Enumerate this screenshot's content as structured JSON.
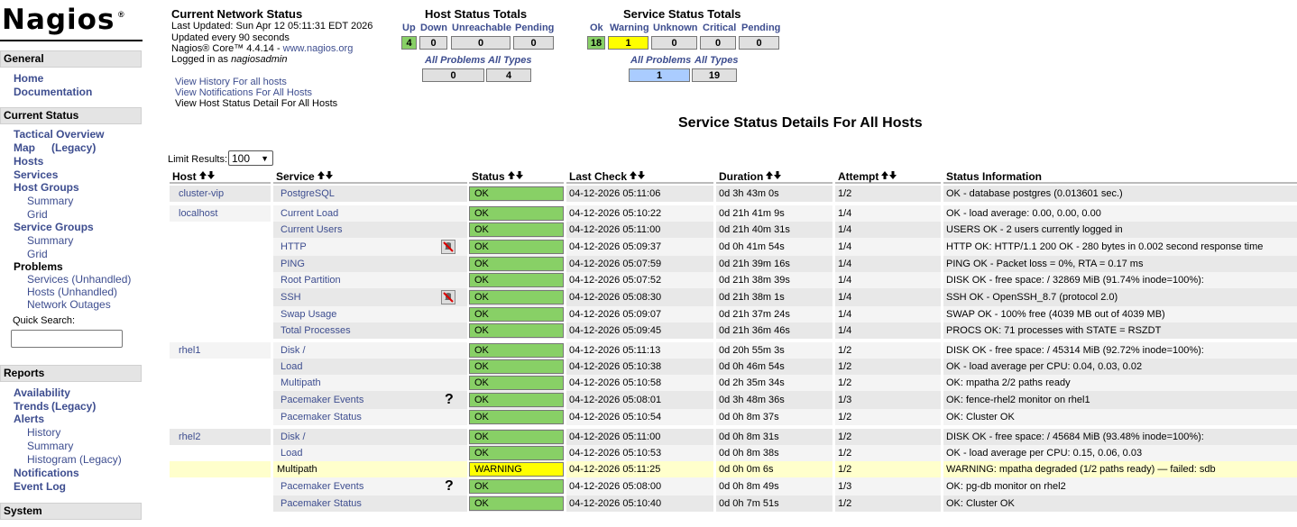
{
  "logo": {
    "name": "Nagios",
    "mark": "®"
  },
  "sidebar": [
    {
      "title": "General",
      "items": [
        {
          "label": "Home",
          "level": 0
        },
        {
          "label": "Documentation",
          "level": 0
        }
      ]
    },
    {
      "title": "Current Status",
      "items": [
        {
          "label": "Tactical Overview",
          "level": 0
        },
        {
          "label": "Map",
          "suffix": "(Legacy)",
          "level": 0
        },
        {
          "label": "Hosts",
          "level": 0
        },
        {
          "label": "Services",
          "level": 0
        },
        {
          "label": "Host Groups",
          "level": 0
        },
        {
          "label": "Summary",
          "level": 1
        },
        {
          "label": "Grid",
          "level": 1
        },
        {
          "label": "Service Groups",
          "level": 0
        },
        {
          "label": "Summary",
          "level": 1
        },
        {
          "label": "Grid",
          "level": 1
        },
        {
          "label": "Problems",
          "level": 0
        },
        {
          "label": "Services (Unhandled)",
          "level": 1
        },
        {
          "label": "Hosts (Unhandled)",
          "level": 1
        },
        {
          "label": "Network Outages",
          "level": 1
        }
      ],
      "search_label": "Quick Search:"
    },
    {
      "title": "Reports",
      "items": [
        {
          "label": "Availability",
          "level": 0
        },
        {
          "label": "Trends",
          "suffix": "(Legacy)",
          "level": 0
        },
        {
          "label": "Alerts",
          "level": 0
        },
        {
          "label": "History",
          "level": 1
        },
        {
          "label": "Summary",
          "level": 1
        },
        {
          "label": "Histogram (Legacy)",
          "level": 1
        },
        {
          "label": "Notifications",
          "level": 0
        },
        {
          "label": "Event Log",
          "level": 0
        }
      ]
    },
    {
      "title": "System",
      "items": []
    }
  ],
  "info": {
    "title": "Current Network Status",
    "last_updated": "Last Updated: Sun Apr 12 05:11:31 EDT 2026",
    "interval": "Updated every 90 seconds",
    "version": "Nagios® Core™ 4.4.14 - ",
    "website": "www.nagios.org",
    "login_prefix": "Logged in as ",
    "user": "nagiosadmin",
    "links": [
      "View History For all hosts",
      "View Notifications For All Hosts",
      "View Host Status Detail For All Hosts"
    ]
  },
  "host_totals": {
    "title": "Host Status Totals",
    "labels": [
      "Up",
      "Down",
      "Unreachable",
      "Pending"
    ],
    "values": [
      "4",
      "0",
      "0",
      "0"
    ],
    "colors": [
      "#88d066",
      null,
      null,
      null
    ],
    "summary_labels": [
      "All Problems",
      "All Types"
    ],
    "summary_values": [
      "0",
      "4"
    ],
    "summary_colors": [
      null,
      null
    ]
  },
  "service_totals": {
    "title": "Service Status Totals",
    "labels": [
      "Ok",
      "Warning",
      "Unknown",
      "Critical",
      "Pending"
    ],
    "values": [
      "18",
      "1",
      "0",
      "0",
      "0"
    ],
    "colors": [
      "#88d066",
      "#ffff00",
      null,
      null,
      null
    ],
    "summary_labels": [
      "All Problems",
      "All Types"
    ],
    "summary_values": [
      "1",
      "19"
    ],
    "summary_colors": [
      "#aaccff",
      null
    ]
  },
  "table": {
    "title": "Service Status Details For All Hosts",
    "limit_label": "Limit Results:",
    "limit": "100",
    "columns": [
      "Host",
      "Service",
      "Status",
      "Last Check",
      "Duration",
      "Attempt",
      "Status Information"
    ],
    "rows": [
      {
        "host": "cluster-vip",
        "service": "PostgreSQL",
        "status": "OK",
        "last_check": "04-12-2026 05:11:06",
        "duration": "0d 3h 43m 0s",
        "attempt": "1/2",
        "info": "OK - database postgres (0.013601 sec.)"
      },
      {
        "host": "localhost",
        "service": "Current Load",
        "status": "OK",
        "last_check": "04-12-2026 05:10:22",
        "duration": "0d 21h 41m 9s",
        "attempt": "1/4",
        "info": "OK - load average: 0.00, 0.00, 0.00"
      },
      {
        "host": null,
        "service": "Current Users",
        "status": "OK",
        "last_check": "04-12-2026 05:11:00",
        "duration": "0d 21h 40m 31s",
        "attempt": "1/4",
        "info": "USERS OK - 2 users currently logged in"
      },
      {
        "host": null,
        "service": "HTTP",
        "notifications": false,
        "status": "OK",
        "last_check": "04-12-2026 05:09:37",
        "duration": "0d 0h 41m 54s",
        "attempt": "1/4",
        "info": "HTTP OK: HTTP/1.1 200 OK - 280 bytes in 0.002 second response time"
      },
      {
        "host": null,
        "service": "PING",
        "status": "OK",
        "last_check": "04-12-2026 05:07:59",
        "duration": "0d 21h 39m 16s",
        "attempt": "1/4",
        "info": "PING OK - Packet loss = 0%, RTA = 0.17 ms"
      },
      {
        "host": null,
        "service": "Root Partition",
        "status": "OK",
        "last_check": "04-12-2026 05:07:52",
        "duration": "0d 21h 38m 39s",
        "attempt": "1/4",
        "info": "DISK OK - free space: / 32869 MiB (91.74% inode=100%):"
      },
      {
        "host": null,
        "service": "SSH",
        "notifications": false,
        "status": "OK",
        "last_check": "04-12-2026 05:08:30",
        "duration": "0d 21h 38m 1s",
        "attempt": "1/4",
        "info": "SSH OK - OpenSSH_8.7 (protocol 2.0)"
      },
      {
        "host": null,
        "service": "Swap Usage",
        "status": "OK",
        "last_check": "04-12-2026 05:09:07",
        "duration": "0d 21h 37m 24s",
        "attempt": "1/4",
        "info": "SWAP OK - 100% free (4039 MB out of 4039 MB)"
      },
      {
        "host": null,
        "service": "Total Processes",
        "status": "OK",
        "last_check": "04-12-2026 05:09:45",
        "duration": "0d 21h 36m 46s",
        "attempt": "1/4",
        "info": "PROCS OK: 71 processes with STATE = RSZDT"
      },
      {
        "host": "rhel1",
        "service": "Disk /",
        "status": "OK",
        "last_check": "04-12-2026 05:11:13",
        "duration": "0d 20h 55m 3s",
        "attempt": "1/2",
        "info": "DISK OK - free space: / 45314 MiB (92.72% inode=100%):"
      },
      {
        "host": null,
        "service": "Load",
        "status": "OK",
        "last_check": "04-12-2026 05:10:38",
        "duration": "0d 0h 46m 54s",
        "attempt": "1/2",
        "info": "OK - load average per CPU: 0.04, 0.03, 0.02"
      },
      {
        "host": null,
        "service": "Multipath",
        "status": "OK",
        "last_check": "04-12-2026 05:10:58",
        "duration": "0d 2h 35m 34s",
        "attempt": "1/2",
        "info": "OK: mpatha 2/2 paths ready"
      },
      {
        "host": null,
        "service": "Pacemaker Events",
        "icon": "?",
        "status": "OK",
        "last_check": "04-12-2026 05:08:01",
        "duration": "0d 3h 48m 36s",
        "attempt": "1/3",
        "info": "OK: fence-rhel2 monitor on rhel1"
      },
      {
        "host": null,
        "service": "Pacemaker Status",
        "status": "OK",
        "last_check": "04-12-2026 05:10:54",
        "duration": "0d 0h 8m 37s",
        "attempt": "1/2",
        "info": "OK: Cluster OK"
      },
      {
        "host": "rhel2",
        "service": "Disk /",
        "status": "OK",
        "last_check": "04-12-2026 05:11:00",
        "duration": "0d 0h 8m 31s",
        "attempt": "1/2",
        "info": "DISK OK - free space: / 45684 MiB (93.48% inode=100%):"
      },
      {
        "host": null,
        "service": "Load",
        "status": "OK",
        "last_check": "04-12-2026 05:10:53",
        "duration": "0d 0h 8m 38s",
        "attempt": "1/2",
        "info": "OK - load average per CPU: 0.15, 0.06, 0.03"
      },
      {
        "host": null,
        "service": "Multipath",
        "status": "WARNING",
        "last_check": "04-12-2026 05:11:25",
        "duration": "0d 0h 0m 6s",
        "attempt": "1/2",
        "info": "WARNING: mpatha degraded (1/2 paths ready) — failed: sdb"
      },
      {
        "host": null,
        "service": "Pacemaker Events",
        "icon": "?",
        "status": "OK",
        "last_check": "04-12-2026 05:08:00",
        "duration": "0d 0h 8m 49s",
        "attempt": "1/3",
        "info": "OK: pg-db monitor on rhel2"
      },
      {
        "host": null,
        "service": "Pacemaker Status",
        "status": "OK",
        "last_check": "04-12-2026 05:10:40",
        "duration": "0d 0h 7m 51s",
        "attempt": "1/2",
        "info": "OK: Cluster OK"
      }
    ]
  }
}
